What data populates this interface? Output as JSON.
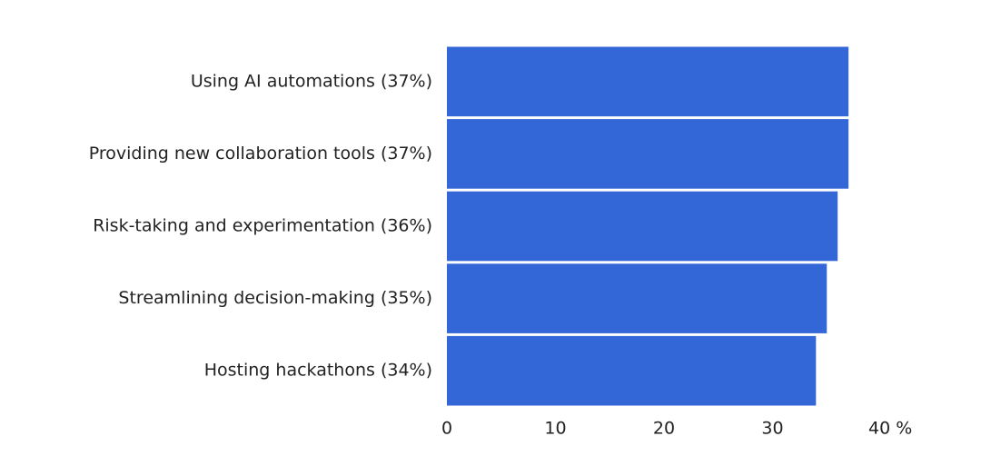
{
  "chart_data": {
    "type": "bar",
    "orientation": "horizontal",
    "categories": [
      "Using AI automations (37%)",
      "Providing new collaboration tools (37%)",
      "Risk-taking and experimentation (36%)",
      "Streamlining decision-making (35%)",
      "Hosting hackathons (34%)"
    ],
    "values": [
      37,
      37,
      36,
      35,
      34
    ],
    "color": "#3366d6",
    "xlim": [
      0,
      40
    ],
    "xticks": [
      0,
      10,
      20,
      30,
      {
        "value": 40,
        "label": "40 %"
      }
    ],
    "grid": false
  }
}
